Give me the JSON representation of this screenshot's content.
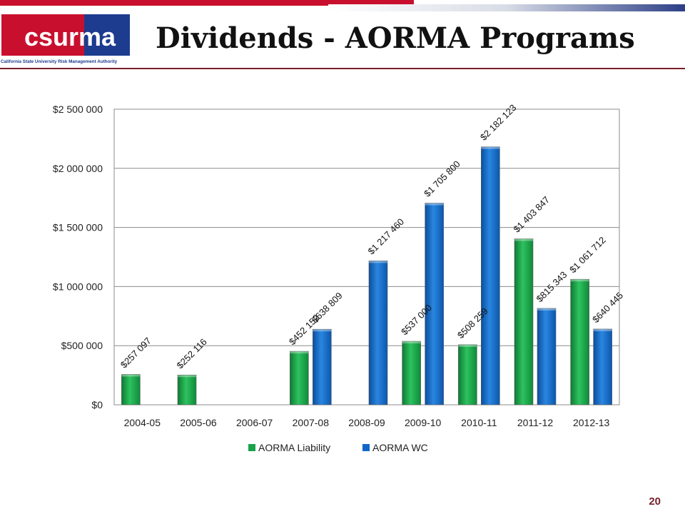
{
  "header": {
    "title": "Dividends - AORMA Programs",
    "logo_text": "csurma",
    "logo_subtitle": "California State University Risk Management Authority"
  },
  "page_number": "20",
  "colors": {
    "accent": "#7a1f2b",
    "brand_red": "#c8102e",
    "brand_blue": "#1d3c8f",
    "liability": "#1aa24a",
    "wc": "#1167c8"
  },
  "chart_data": {
    "type": "bar",
    "title": "",
    "xlabel": "",
    "ylabel": "",
    "categories": [
      "2004-05",
      "2005-06",
      "2006-07",
      "2007-08",
      "2008-09",
      "2009-10",
      "2010-11",
      "2011-12",
      "2012-13"
    ],
    "ylim": [
      0,
      2500000
    ],
    "yticks": [
      0,
      500000,
      1000000,
      1500000,
      2000000,
      2500000
    ],
    "ytick_labels": [
      "$0",
      "$500 000",
      "$1 000 000",
      "$1 500 000",
      "$2 000 000",
      "$2 500 000"
    ],
    "grid": true,
    "legend_position": "bottom",
    "series": [
      {
        "name": "AORMA Liability",
        "color": "#1aa24a",
        "values": [
          257097,
          252116,
          null,
          452152,
          null,
          537000,
          508259,
          1403847,
          1061712
        ],
        "labels": [
          "$257 097",
          "$252 116",
          null,
          "$452 152",
          null,
          "$537 000",
          "$508 259",
          "$1 403 847",
          "$1 061 712"
        ]
      },
      {
        "name": "AORMA WC",
        "color": "#1167c8",
        "values": [
          null,
          null,
          null,
          638809,
          1217460,
          1705800,
          2182123,
          815343,
          640445
        ],
        "labels": [
          null,
          null,
          null,
          "$638 809",
          "$1 217 460",
          "$1 705 800",
          "$2 182 123",
          "$815 343",
          "$640 445"
        ]
      }
    ]
  }
}
